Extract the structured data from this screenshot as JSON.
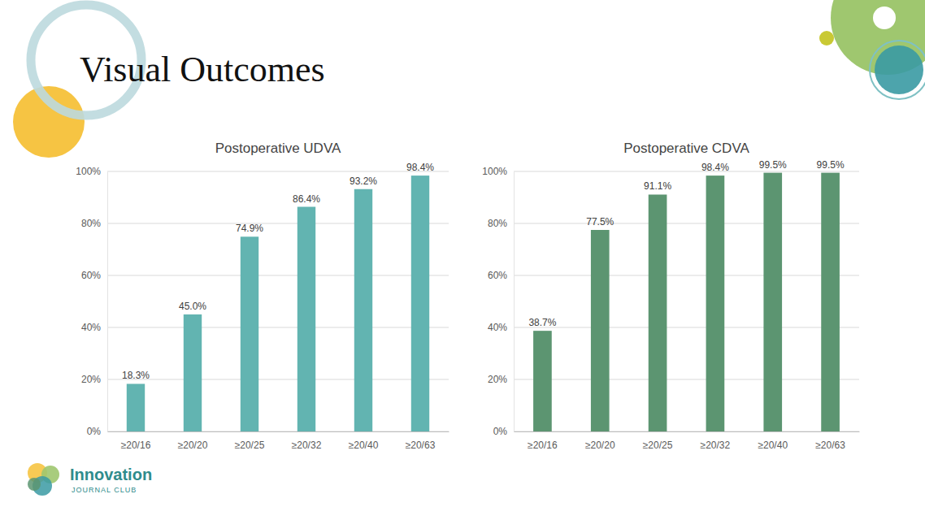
{
  "slide": {
    "title": "Visual Outcomes",
    "logo": [
      "Innovation",
      "JOURNAL CLUB"
    ]
  },
  "chart_data": [
    {
      "type": "bar",
      "title": "Postoperative UDVA",
      "categories": [
        "≥20/16",
        "≥20/20",
        "≥20/25",
        "≥20/32",
        "≥20/40",
        "≥20/63"
      ],
      "values": [
        18.3,
        45.0,
        74.9,
        86.4,
        93.2,
        98.4
      ],
      "value_labels": [
        "18.3%",
        "45.0%",
        "74.9%",
        "86.4%",
        "93.2%",
        "98.4%"
      ],
      "color": "#62b4b1",
      "ylim": [
        0,
        100
      ],
      "yticks": [
        {
          "value": 0,
          "label": "0%"
        },
        {
          "value": 20,
          "label": "20%"
        },
        {
          "value": 40,
          "label": "40%"
        },
        {
          "value": 60,
          "label": "60%"
        },
        {
          "value": 80,
          "label": "80%"
        },
        {
          "value": 100,
          "label": "100%"
        }
      ],
      "grid": true,
      "data_labels": true
    },
    {
      "type": "bar",
      "title": "Postoperative CDVA",
      "categories": [
        "≥20/16",
        "≥20/20",
        "≥20/25",
        "≥20/32",
        "≥20/40",
        "≥20/63"
      ],
      "values": [
        38.7,
        77.5,
        91.1,
        98.4,
        99.5,
        99.5
      ],
      "value_labels": [
        "38.7%",
        "77.5%",
        "91.1%",
        "98.4%",
        "99.5%",
        "99.5%"
      ],
      "color": "#5c9571",
      "ylim": [
        0,
        100
      ],
      "yticks": [
        {
          "value": 0,
          "label": "0%"
        },
        {
          "value": 20,
          "label": "20%"
        },
        {
          "value": 40,
          "label": "40%"
        },
        {
          "value": 60,
          "label": "60%"
        },
        {
          "value": 80,
          "label": "80%"
        },
        {
          "value": 100,
          "label": "100%"
        }
      ],
      "grid": true,
      "data_labels": true
    }
  ]
}
